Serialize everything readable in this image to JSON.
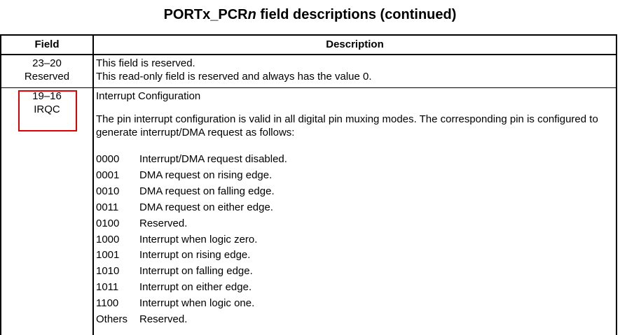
{
  "title": "PORTx_PCRn field descriptions (continued)",
  "title_prefix": "PORTx_PCR",
  "title_italic": "n",
  "title_suffix": " field descriptions (continued)",
  "headers": {
    "field": "Field",
    "description": "Description"
  },
  "rows": [
    {
      "bits": "23–20",
      "name": "Reserved",
      "lines": [
        "This field is reserved.",
        "This read-only field is reserved and always has the value 0."
      ]
    },
    {
      "bits": "19–16",
      "name": "IRQC",
      "heading": "Interrupt Configuration",
      "paragraph": "The pin interrupt configuration is valid in all digital pin muxing modes. The corresponding pin is configured to generate interrupt/DMA request as follows:",
      "codes": [
        {
          "code": "0000",
          "desc": "Interrupt/DMA request disabled."
        },
        {
          "code": "0001",
          "desc": "DMA request on rising edge."
        },
        {
          "code": "0010",
          "desc": "DMA request on falling edge."
        },
        {
          "code": "0011",
          "desc": "DMA request on either edge."
        },
        {
          "code": "0100",
          "desc": "Reserved."
        },
        {
          "code": "1000",
          "desc": "Interrupt when logic zero."
        },
        {
          "code": "1001",
          "desc": "Interrupt on rising edge."
        },
        {
          "code": "1010",
          "desc": "Interrupt on falling edge."
        },
        {
          "code": "1011",
          "desc": "Interrupt on either edge."
        },
        {
          "code": "1100",
          "desc": "Interrupt when logic one."
        },
        {
          "code": "Others",
          "desc": "Reserved."
        }
      ]
    }
  ],
  "highlight_color": "#e00000"
}
